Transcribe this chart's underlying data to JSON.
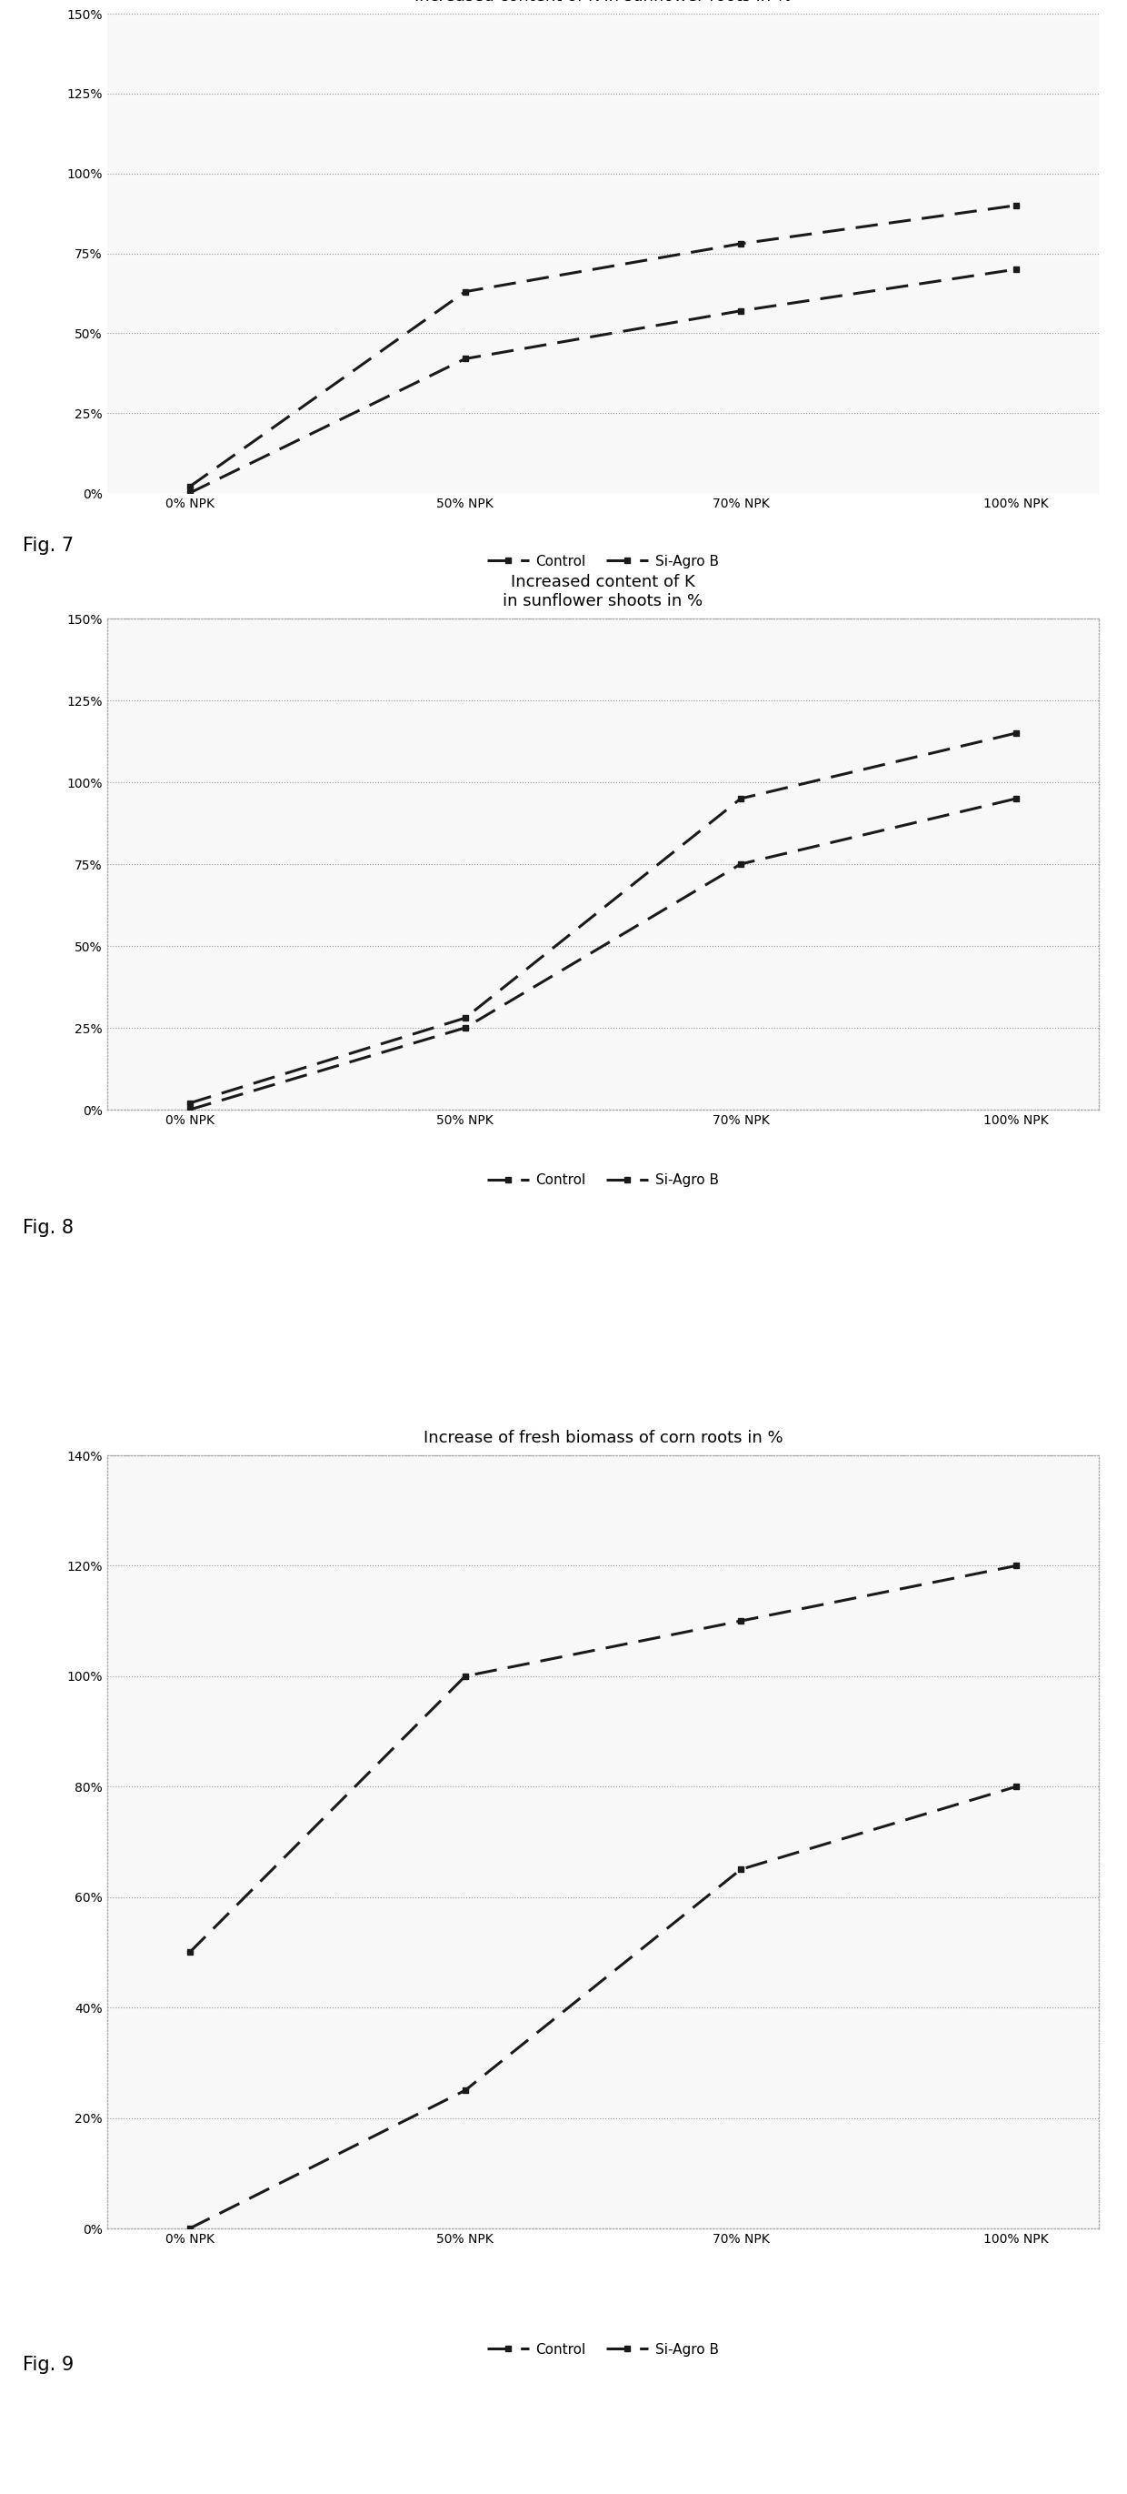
{
  "fig7": {
    "title": "Increased content of K in sunflower roots in %",
    "x_labels": [
      "0% NPK",
      "50% NPK",
      "70% NPK",
      "100% NPK"
    ],
    "x_values": [
      0,
      1,
      2,
      3
    ],
    "control": [
      0,
      42,
      57,
      70
    ],
    "si_agro_b": [
      2,
      63,
      78,
      90
    ],
    "ylim": [
      0,
      150
    ],
    "yticks": [
      0,
      25,
      50,
      75,
      100,
      125,
      150
    ],
    "ytick_labels": [
      "0%",
      "25%",
      "50%",
      "75%",
      "100%",
      "125%",
      "150%"
    ]
  },
  "fig8": {
    "title": "Increased content of K\nin sunflower shoots in %",
    "x_labels": [
      "0% NPK",
      "50% NPK",
      "70% NPK",
      "100% NPK"
    ],
    "x_values": [
      0,
      1,
      2,
      3
    ],
    "control": [
      0,
      25,
      75,
      95
    ],
    "si_agro_b": [
      2,
      28,
      95,
      115
    ],
    "ylim": [
      0,
      150
    ],
    "yticks": [
      0,
      25,
      50,
      75,
      100,
      125,
      150
    ],
    "ytick_labels": [
      "0%",
      "25%",
      "50%",
      "75%",
      "100%",
      "125%",
      "150%"
    ]
  },
  "fig9": {
    "title": "Increase of fresh biomass of corn roots in %",
    "x_labels": [
      "0% NPK",
      "50% NPK",
      "70% NPK",
      "100% NPK"
    ],
    "x_values": [
      0,
      1,
      2,
      3
    ],
    "control": [
      0,
      25,
      65,
      80
    ],
    "si_agro_b": [
      50,
      100,
      110,
      120
    ],
    "ylim": [
      0,
      140
    ],
    "yticks": [
      0,
      20,
      40,
      60,
      80,
      100,
      120,
      140
    ],
    "ytick_labels": [
      "0%",
      "20%",
      "40%",
      "60%",
      "80%",
      "100%",
      "120%",
      "140%"
    ]
  },
  "legend_control": "Control",
  "legend_si_agro_b": "Si-Agro B",
  "fig_labels": [
    "Fig. 7",
    "Fig. 8",
    "Fig. 9"
  ],
  "line_color": "#1a1a1a",
  "background_color": "#ffffff",
  "chart_bg": "#f8f8f8",
  "grid_color": "#999999",
  "border_color": "#aaaaaa",
  "title_fontsize": 13,
  "tick_fontsize": 10,
  "legend_fontsize": 11,
  "fig_label_fontsize": 15
}
